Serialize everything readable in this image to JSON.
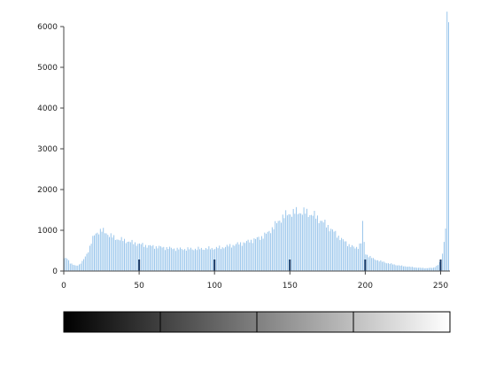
{
  "chart_data": {
    "type": "bar",
    "title": "",
    "xlabel": "",
    "ylabel": "",
    "xlim": [
      0,
      255
    ],
    "ylim": [
      0,
      6000
    ],
    "x_ticks": [
      0,
      50,
      100,
      150,
      200,
      250
    ],
    "y_ticks": [
      0,
      1000,
      2000,
      3000,
      4000,
      5000,
      6000
    ],
    "grid": false,
    "legend": "none",
    "bar_color": "#3a8fd8",
    "marker_color": "#1a3a66",
    "x_markers": [
      50,
      100,
      150,
      200,
      250
    ],
    "profile_points": [
      [
        0,
        300
      ],
      [
        2,
        320
      ],
      [
        4,
        200
      ],
      [
        6,
        150
      ],
      [
        8,
        130
      ],
      [
        10,
        160
      ],
      [
        12,
        230
      ],
      [
        14,
        350
      ],
      [
        16,
        500
      ],
      [
        18,
        700
      ],
      [
        20,
        880
      ],
      [
        22,
        960
      ],
      [
        25,
        990
      ],
      [
        28,
        940
      ],
      [
        30,
        880
      ],
      [
        33,
        820
      ],
      [
        36,
        780
      ],
      [
        40,
        750
      ],
      [
        45,
        700
      ],
      [
        50,
        660
      ],
      [
        55,
        620
      ],
      [
        60,
        600
      ],
      [
        65,
        580
      ],
      [
        70,
        560
      ],
      [
        75,
        540
      ],
      [
        80,
        540
      ],
      [
        85,
        540
      ],
      [
        90,
        545
      ],
      [
        95,
        550
      ],
      [
        100,
        560
      ],
      [
        105,
        580
      ],
      [
        110,
        620
      ],
      [
        115,
        660
      ],
      [
        120,
        700
      ],
      [
        125,
        760
      ],
      [
        130,
        820
      ],
      [
        135,
        930
      ],
      [
        140,
        1130
      ],
      [
        145,
        1330
      ],
      [
        150,
        1420
      ],
      [
        155,
        1450
      ],
      [
        160,
        1440
      ],
      [
        165,
        1380
      ],
      [
        170,
        1250
      ],
      [
        175,
        1100
      ],
      [
        180,
        920
      ],
      [
        185,
        750
      ],
      [
        190,
        620
      ],
      [
        193,
        560
      ],
      [
        195,
        600
      ],
      [
        197,
        700
      ],
      [
        198,
        1150
      ],
      [
        199,
        700
      ],
      [
        200,
        420
      ],
      [
        205,
        300
      ],
      [
        210,
        240
      ],
      [
        215,
        190
      ],
      [
        220,
        150
      ],
      [
        225,
        120
      ],
      [
        230,
        100
      ],
      [
        235,
        80
      ],
      [
        240,
        70
      ],
      [
        245,
        80
      ],
      [
        248,
        150
      ],
      [
        250,
        270
      ],
      [
        251,
        450
      ],
      [
        252,
        700
      ],
      [
        253,
        1150
      ],
      [
        254,
        6080
      ],
      [
        255,
        6080
      ]
    ],
    "gradient_bar": {
      "from_color": "#000000",
      "to_color": "#ffffff",
      "divisions": 4
    }
  }
}
